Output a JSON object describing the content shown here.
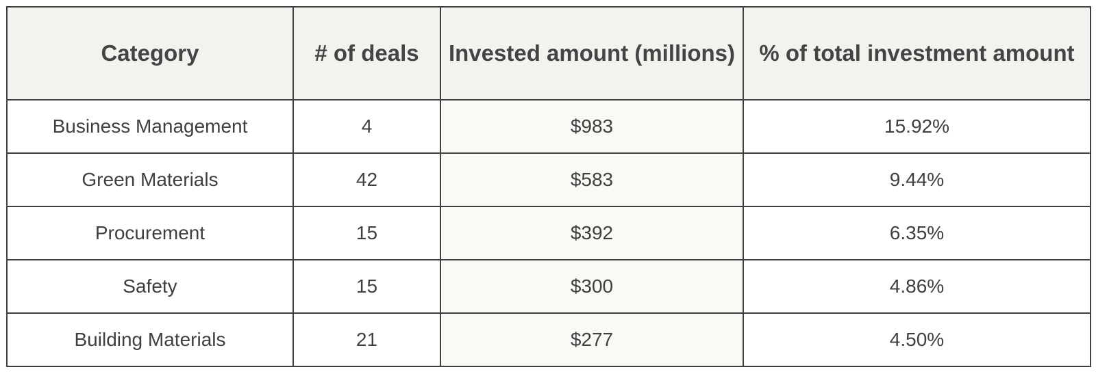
{
  "table": {
    "headers": [
      "Category",
      "# of deals",
      "Invested amount (millions)",
      "% of total investment amount"
    ],
    "rows": [
      [
        "Business Management",
        "4",
        "$983",
        "15.92%"
      ],
      [
        "Green Materials",
        "42",
        "$583",
        "9.44%"
      ],
      [
        "Procurement",
        "15",
        "$392",
        "6.35%"
      ],
      [
        "Safety",
        "15",
        "$300",
        "4.86%"
      ],
      [
        "Building Materials",
        "21",
        "$277",
        "4.50%"
      ]
    ]
  }
}
